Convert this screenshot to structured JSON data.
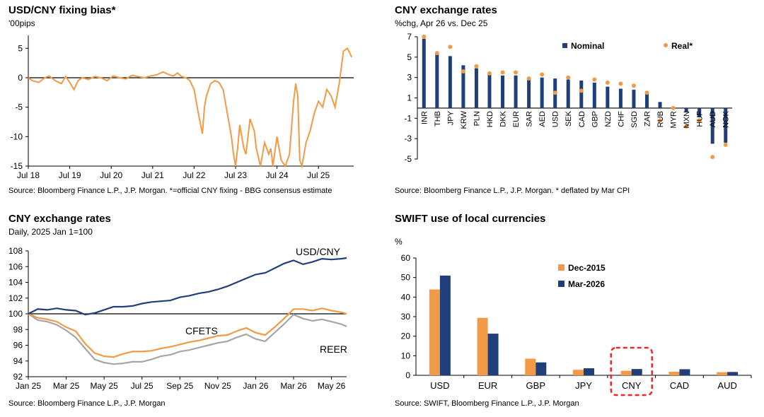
{
  "colors": {
    "orange": "#F29A45",
    "navy": "#1F3F7A",
    "grey": "#A6A6A6",
    "highlight": "#E8292A",
    "axis": "#000000"
  },
  "chart_data": [
    {
      "id": "fixing",
      "type": "line",
      "title": "USD/CNY fixing bias*",
      "subtitle": "'00pips",
      "source": "Source: Bloomberg Finance L.P., J.P. Morgan. *=official CNY fixing - BBG consensus estimate",
      "ylim": [
        -15,
        6
      ],
      "yticks": [
        "5",
        "0",
        "-5",
        "-10",
        "-15"
      ],
      "xticks": [
        "Jul 18",
        "Jul 19",
        "Jul 20",
        "Jul 21",
        "Jul 22",
        "Jul 23",
        "Jul 24",
        "Jul 25"
      ],
      "series": [
        {
          "x": [
            2018.5,
            2018.6,
            2018.75,
            2018.9,
            2019.0,
            2019.15,
            2019.3,
            2019.4,
            2019.5,
            2019.6,
            2019.7,
            2019.8,
            2019.95,
            2020.1,
            2020.25,
            2020.4,
            2020.55,
            2020.7,
            2020.85,
            2021.0,
            2021.15,
            2021.3,
            2021.45,
            2021.6,
            2021.75,
            2021.9,
            2022.0,
            2022.1,
            2022.2,
            2022.3,
            2022.4,
            2022.5,
            2022.6,
            2022.7,
            2022.75,
            2022.8,
            2022.9,
            2023.0,
            2023.1,
            2023.2,
            2023.3,
            2023.4,
            2023.45,
            2023.5,
            2023.55,
            2023.6,
            2023.65,
            2023.7,
            2023.75,
            2023.85,
            2023.95,
            2024.0,
            2024.1,
            2024.2,
            2024.3,
            2024.35,
            2024.4,
            2024.5,
            2024.6,
            2024.7,
            2024.8,
            2024.9,
            2024.95,
            2025.0,
            2025.05,
            2025.1,
            2025.2,
            2025.3,
            2025.4,
            2025.5,
            2025.6,
            2025.7,
            2025.8,
            2025.9,
            2026.0,
            2026.1,
            2026.2,
            2026.3
          ],
          "y": [
            0,
            -0.5,
            -0.8,
            0,
            0.3,
            -0.5,
            -1,
            0.2,
            -0.8,
            -2,
            -0.5,
            0,
            -0.3,
            0.2,
            0,
            -0.5,
            0.3,
            0,
            -0.2,
            0.4,
            0.2,
            0,
            0.3,
            0.5,
            1,
            0.5,
            0.3,
            0.8,
            0.2,
            0,
            -0.5,
            -2,
            -6,
            -9.5,
            -5,
            -3,
            -1,
            -0.5,
            -0.8,
            -2,
            -6,
            -10,
            -13,
            -15,
            -12,
            -8,
            -10,
            -12,
            -13,
            -7,
            -9,
            -12,
            -15,
            -11,
            -13,
            -12,
            -15,
            -10,
            -14,
            -15,
            -13,
            -4,
            -1,
            -3,
            -14,
            -15,
            -11,
            -9,
            -6,
            -4,
            -5,
            -2,
            -3,
            -5,
            -1,
            4.5,
            5,
            3.5
          ]
        }
      ]
    },
    {
      "id": "cnyrates",
      "type": "bar",
      "title": "CNY exchange rates",
      "subtitle": "%chg, Apr 26 vs. Dec 25",
      "source": "Source: Bloomberg Finance L.P., J.P. Morgan. * deflated by Mar CPI",
      "ylim": [
        -5,
        7
      ],
      "yticks": [
        "7",
        "5",
        "3",
        "1",
        "-1",
        "-3",
        "-5"
      ],
      "categories": [
        "INR",
        "THB",
        "JPY",
        "KRW",
        "PLN",
        "HKD",
        "DKK",
        "EUR",
        "SAR",
        "AED",
        "USD",
        "SEK",
        "CAD",
        "GBP",
        "NZD",
        "CHF",
        "SGD",
        "ZAR",
        "RUB",
        "MYR",
        "MXN",
        "HUF",
        "AUD",
        "NOK"
      ],
      "series": [
        {
          "name": "Nominal",
          "values": [
            6.8,
            5.3,
            5.1,
            4.2,
            3.9,
            3.4,
            3.2,
            3.2,
            2.9,
            3.0,
            2.9,
            2.8,
            2.7,
            2.5,
            2.1,
            1.9,
            1.8,
            1.4,
            0.6,
            -0.1,
            -0.4,
            -0.9,
            -3.5,
            -3.4
          ]
        },
        {
          "name": "Real*",
          "values": [
            7.0,
            5.4,
            6.0,
            3.6,
            4.1,
            3.4,
            3.5,
            3.5,
            2.9,
            3.3,
            1.5,
            3.0,
            1.7,
            2.8,
            2.5,
            2.4,
            2.2,
            1.5,
            -1.2,
            0.0,
            -1.8,
            -1.2,
            -4.8,
            -3.6
          ]
        }
      ]
    },
    {
      "id": "index",
      "type": "line",
      "title": "CNY exchange rates",
      "subtitle": "Daily, 2025 Jan 1=100",
      "source": "Source: Bloomberg Finance L.P., J.P. Morgan",
      "ylim": [
        92,
        108
      ],
      "yticks": [
        "108",
        "106",
        "104",
        "102",
        "100",
        "98",
        "96",
        "94",
        "92"
      ],
      "xticks": [
        "Jan 25",
        "Mar 25",
        "May 25",
        "Jul 25",
        "Sep 25",
        "Nov 25",
        "Jan 26",
        "Mar 26",
        "May 26"
      ],
      "annotations": [
        "USD/CNY",
        "CFETS",
        "REER"
      ],
      "series": [
        {
          "name": "USD/CNY",
          "x": [
            0,
            0.5,
            1,
            1.5,
            2,
            2.5,
            3,
            3.5,
            4,
            4.5,
            5,
            5.5,
            6,
            6.5,
            7,
            7.5,
            8,
            8.5,
            9,
            9.5,
            10,
            10.5,
            11,
            11.5,
            12,
            12.5,
            13,
            13.5,
            14,
            14.5,
            15,
            15.5,
            16,
            16.5,
            16.8
          ],
          "y": [
            100,
            100.6,
            100.5,
            100.7,
            100.5,
            100.4,
            99.9,
            100.1,
            100.5,
            100.9,
            100.9,
            101.0,
            101.3,
            101.5,
            101.6,
            101.7,
            102.1,
            102.3,
            102.6,
            102.8,
            103.1,
            103.5,
            104.0,
            104.5,
            105.0,
            105.2,
            105.8,
            106.4,
            106.8,
            106.3,
            106.6,
            107.0,
            106.9,
            107.0,
            107.1
          ]
        },
        {
          "name": "CFETS",
          "x": [
            0,
            0.5,
            1,
            1.5,
            2,
            2.5,
            3,
            3.5,
            4,
            4.5,
            5,
            5.5,
            6,
            6.5,
            7,
            7.5,
            8,
            8.5,
            9,
            9.5,
            10,
            10.5,
            11,
            11.5,
            12,
            12.5,
            13,
            13.5,
            14,
            14.5,
            15,
            15.5,
            16,
            16.5,
            16.8
          ],
          "y": [
            100,
            99.5,
            99.3,
            99.0,
            98.3,
            97.8,
            96.2,
            95.0,
            94.6,
            94.5,
            94.9,
            95.2,
            95.2,
            95.3,
            95.6,
            95.8,
            96.1,
            96.4,
            96.6,
            96.9,
            97.2,
            97.3,
            97.8,
            98.2,
            97.6,
            97.3,
            98.3,
            99.4,
            100.6,
            100.6,
            100.4,
            100.7,
            100.4,
            100.2,
            100.0
          ]
        },
        {
          "name": "REER",
          "x": [
            0,
            0.5,
            1,
            1.5,
            2,
            2.5,
            3,
            3.5,
            4,
            4.5,
            5,
            5.5,
            6,
            6.5,
            7,
            7.5,
            8,
            8.5,
            9,
            9.5,
            10,
            10.5,
            11,
            11.5,
            12,
            12.5,
            13,
            13.5,
            14,
            14.5,
            15,
            15.5,
            16,
            16.5,
            16.8
          ],
          "y": [
            100,
            99.2,
            99.0,
            98.6,
            97.9,
            97.0,
            95.6,
            94.2,
            93.8,
            93.6,
            93.7,
            93.9,
            93.9,
            94.2,
            94.6,
            94.8,
            95.2,
            95.4,
            95.7,
            96.0,
            96.3,
            96.5,
            97.0,
            97.4,
            96.8,
            96.5,
            97.6,
            98.7,
            99.9,
            99.4,
            99.1,
            99.3,
            99.0,
            98.7,
            98.4
          ]
        }
      ]
    },
    {
      "id": "swift",
      "type": "bar",
      "title": "SWIFT use of local currencies",
      "subtitle": "%",
      "source": "Source: SWIFT, Bloomberg Finance L.P., J.P. Morgan",
      "ylim": [
        0,
        60
      ],
      "yticks": [
        "60",
        "50",
        "40",
        "30",
        "20",
        "10",
        "0"
      ],
      "categories": [
        "USD",
        "EUR",
        "GBP",
        "JPY",
        "CNY",
        "CAD",
        "AUD"
      ],
      "highlight": "CNY",
      "series": [
        {
          "name": "Dec-2015",
          "values": [
            43.9,
            29.4,
            8.5,
            2.8,
            2.3,
            1.8,
            1.6
          ]
        },
        {
          "name": "Mar-2026",
          "values": [
            51.0,
            21.3,
            6.6,
            3.6,
            3.2,
            3.1,
            1.7
          ]
        }
      ]
    }
  ]
}
